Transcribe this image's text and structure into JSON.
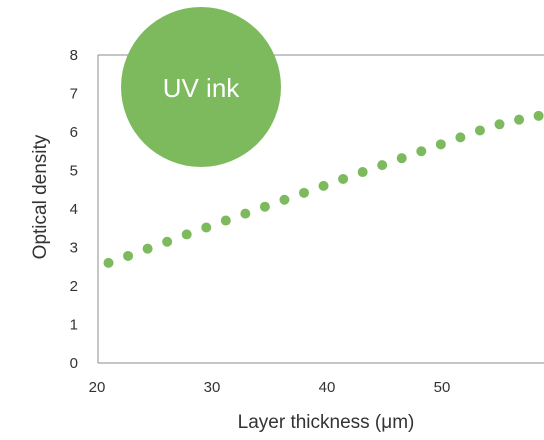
{
  "chart_data": {
    "type": "scatter",
    "xlabel": "Layer thickness (μm)",
    "ylabel": "Optical density",
    "xlim": [
      20,
      60
    ],
    "ylim": [
      0,
      8
    ],
    "x_ticks": [
      "20",
      "30",
      "40",
      "50"
    ],
    "y_ticks": [
      "0",
      "1",
      "2",
      "3",
      "4",
      "5",
      "6",
      "7",
      "8"
    ],
    "grid": false,
    "series": [
      {
        "name": "UV ink",
        "color": "#7dba5e",
        "x": [
          21.0,
          22.7,
          24.4,
          26.1,
          27.8,
          29.5,
          31.2,
          32.9,
          34.6,
          36.3,
          38.0,
          39.7,
          41.4,
          43.1,
          44.8,
          46.5,
          48.2,
          49.9,
          51.6,
          53.3,
          55.0,
          56.7,
          58.4
        ],
        "y": [
          2.6,
          2.78,
          2.97,
          3.15,
          3.34,
          3.52,
          3.7,
          3.88,
          4.06,
          4.24,
          4.42,
          4.6,
          4.78,
          4.96,
          5.14,
          5.32,
          5.5,
          5.68,
          5.86,
          6.04,
          6.2,
          6.32,
          6.42
        ]
      }
    ],
    "badge": {
      "label": "UV ink",
      "color": "#7dba5e"
    }
  }
}
